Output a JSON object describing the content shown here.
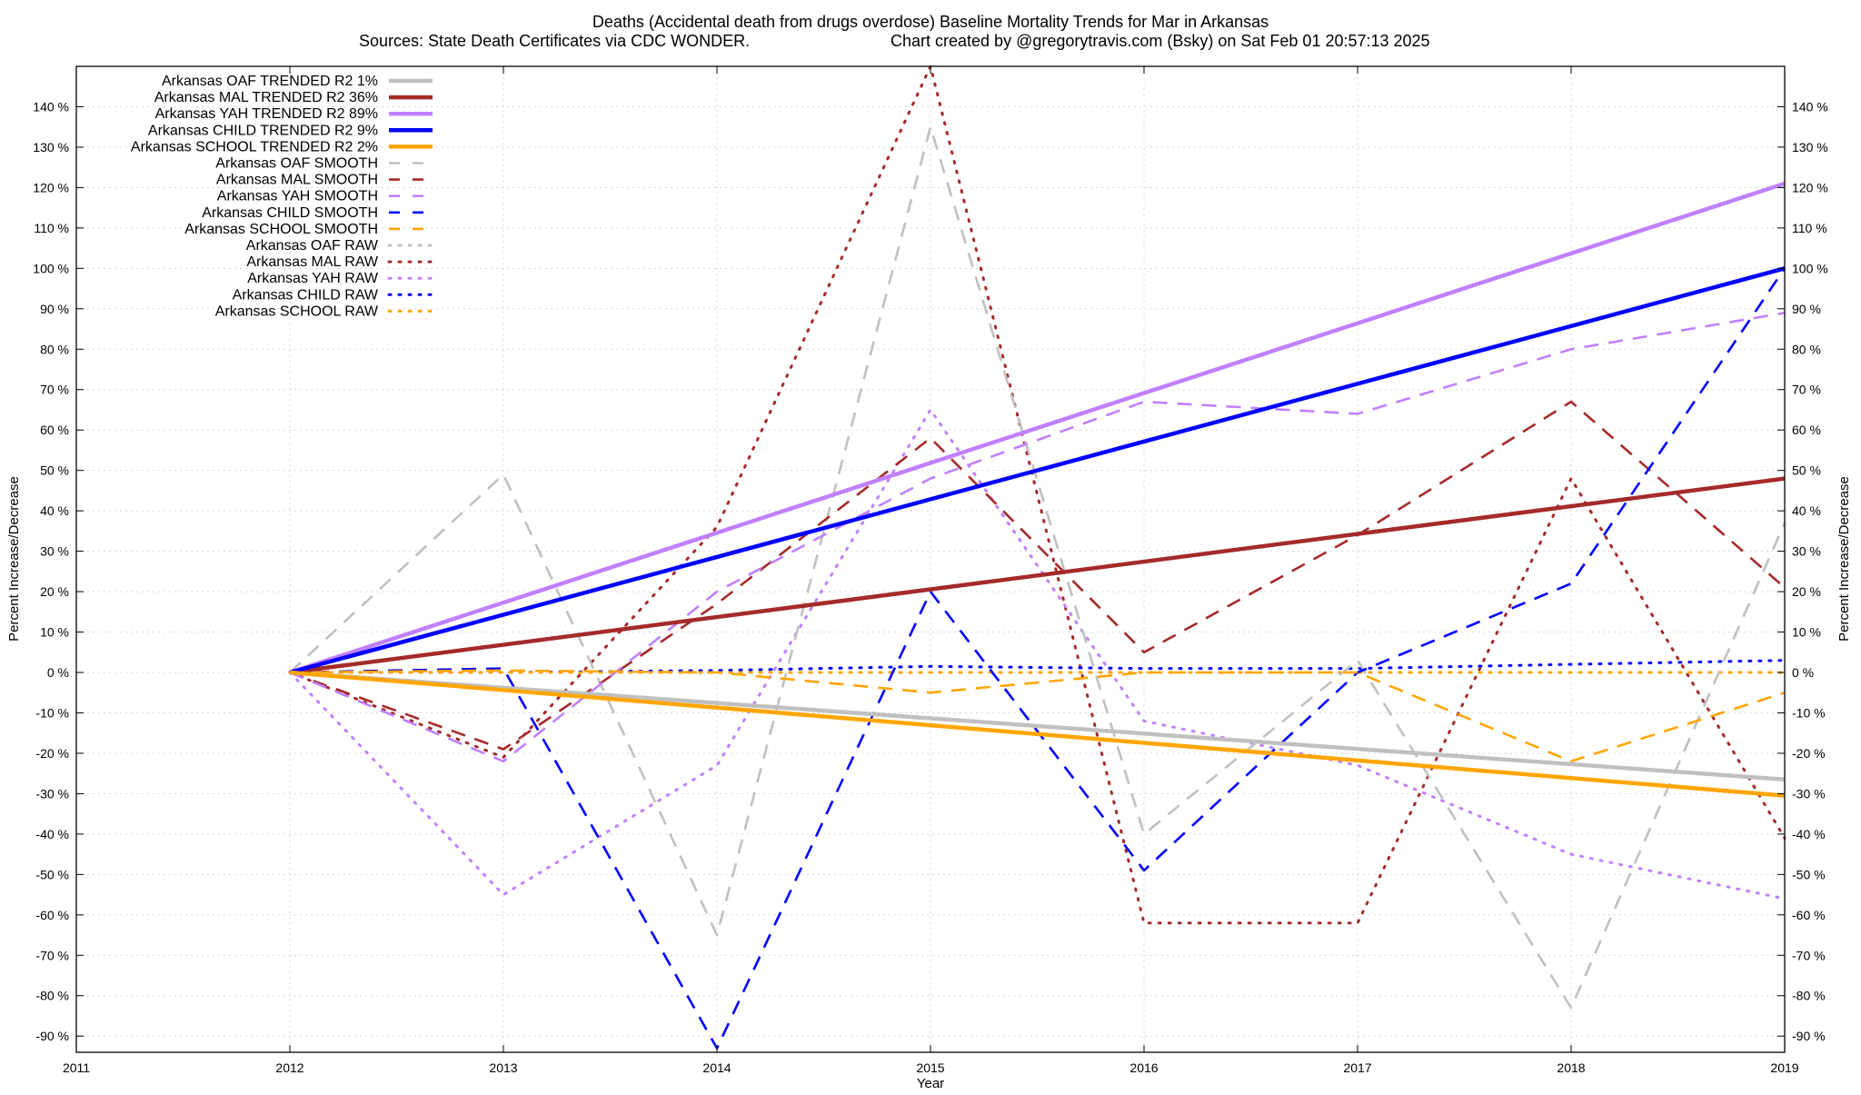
{
  "chart_data": {
    "type": "line",
    "title": "Deaths (Accidental death from drugs overdose)  Baseline Mortality Trends for Mar in Arkansas",
    "subtitle_left": "Sources: State Death Certificates via CDC WONDER.",
    "subtitle_right": "Chart created by @gregorytravis.com (Bsky) on Sat Feb 01 20:57:13 2025",
    "xlabel": "Year",
    "ylabel": "Percent Increase/Decrease",
    "ylabel_right": "Percent Increase/Decrease",
    "xlim": [
      2011,
      2019
    ],
    "ylim": [
      -94,
      150
    ],
    "x_ticks": [
      2011,
      2012,
      2013,
      2014,
      2015,
      2016,
      2017,
      2018,
      2019
    ],
    "x_tick_labels": [
      "2011",
      "2012",
      "2013",
      "2014",
      "2015",
      "2016",
      "2017",
      "2018",
      "2019"
    ],
    "y_ticks": [
      -90,
      -80,
      -70,
      -60,
      -50,
      -40,
      -30,
      -20,
      -10,
      0,
      10,
      20,
      30,
      40,
      50,
      60,
      70,
      80,
      90,
      100,
      110,
      120,
      130,
      140
    ],
    "y_tick_labels": [
      "-90 %",
      "-80 %",
      "-70 %",
      "-60 %",
      "-50 %",
      "-40 %",
      "-30 %",
      "-20 %",
      "-10 %",
      "0 %",
      "10 %",
      "20 %",
      "30 %",
      "40 %",
      "50 %",
      "60 %",
      "70 %",
      "80 %",
      "90 %",
      "100 %",
      "110 %",
      "120 %",
      "130 %",
      "140 %"
    ],
    "grid": true,
    "legend_position": "top-left",
    "series": [
      {
        "name": "Arkansas OAF TRENDED R2   1%",
        "style": "solid",
        "color": "#c0c0c0",
        "x": [
          2012,
          2019
        ],
        "y": [
          0,
          -26.5
        ]
      },
      {
        "name": "Arkansas MAL TRENDED R2  36%",
        "style": "solid",
        "color": "#a52a2a",
        "x": [
          2012,
          2019
        ],
        "y": [
          0,
          48
        ]
      },
      {
        "name": "Arkansas YAH TRENDED R2  89%",
        "style": "solid",
        "color": "#c080ff",
        "x": [
          2012,
          2019
        ],
        "y": [
          0,
          121
        ]
      },
      {
        "name": "Arkansas CHILD TRENDED R2   9%",
        "style": "solid",
        "color": "#0000ff",
        "x": [
          2012,
          2019
        ],
        "y": [
          0,
          100
        ]
      },
      {
        "name": "Arkansas SCHOOL TRENDED R2   2%",
        "style": "solid",
        "color": "#ffa500",
        "x": [
          2012,
          2019
        ],
        "y": [
          0,
          -30.5
        ]
      },
      {
        "name": "Arkansas OAF SMOOTH",
        "style": "dashed",
        "color": "#c0c0c0",
        "x": [
          2012,
          2013,
          2014,
          2015,
          2016,
          2017,
          2018,
          2019
        ],
        "y": [
          0,
          49,
          -65,
          135,
          -40,
          3,
          -83,
          37
        ]
      },
      {
        "name": "Arkansas MAL SMOOTH",
        "style": "dashed",
        "color": "#a52a2a",
        "x": [
          2012,
          2013,
          2014,
          2015,
          2016,
          2017,
          2018,
          2019
        ],
        "y": [
          0,
          -19,
          17,
          58,
          5,
          34,
          67,
          21
        ]
      },
      {
        "name": "Arkansas YAH SMOOTH",
        "style": "dashed",
        "color": "#c080ff",
        "x": [
          2012,
          2013,
          2014,
          2015,
          2016,
          2017,
          2018,
          2019
        ],
        "y": [
          0,
          -22,
          20,
          48,
          67,
          64,
          80,
          89
        ]
      },
      {
        "name": "Arkansas CHILD SMOOTH",
        "style": "dashed",
        "color": "#0000ff",
        "x": [
          2012,
          2013,
          2014,
          2015,
          2016,
          2017,
          2018,
          2019
        ],
        "y": [
          0,
          1,
          -93,
          20,
          -49,
          0,
          22,
          100
        ]
      },
      {
        "name": "Arkansas SCHOOL SMOOTH",
        "style": "dashed",
        "color": "#ffa500",
        "x": [
          2012,
          2013,
          2014,
          2015,
          2016,
          2017,
          2018,
          2019
        ],
        "y": [
          0,
          0.5,
          0,
          -5,
          0,
          0,
          -22,
          -5
        ]
      },
      {
        "name": "Arkansas OAF RAW",
        "style": "dotted",
        "color": "#c0c0c0",
        "x": [
          2012,
          2013,
          2014,
          2015,
          2016,
          2017,
          2018,
          2019
        ],
        "y": [
          0,
          0,
          0,
          0,
          0,
          0,
          0,
          0
        ]
      },
      {
        "name": "Arkansas MAL RAW",
        "style": "dotted",
        "color": "#a52a2a",
        "x": [
          2012,
          2013,
          2014,
          2015,
          2016,
          2017,
          2018,
          2019
        ],
        "y": [
          0,
          -21,
          36,
          150,
          -62,
          -62,
          48,
          -41
        ]
      },
      {
        "name": "Arkansas YAH RAW",
        "style": "dotted",
        "color": "#c080ff",
        "x": [
          2012,
          2013,
          2014,
          2015,
          2016,
          2017,
          2018,
          2019
        ],
        "y": [
          0,
          -55,
          -23,
          65,
          -12,
          -23,
          -45,
          -56
        ]
      },
      {
        "name": "Arkansas CHILD RAW",
        "style": "dotted",
        "color": "#0000ff",
        "x": [
          2012,
          2013,
          2014,
          2015,
          2016,
          2017,
          2018,
          2019
        ],
        "y": [
          0,
          0,
          0.5,
          1.5,
          1,
          1,
          2,
          3
        ]
      },
      {
        "name": "Arkansas SCHOOL RAW",
        "style": "dotted",
        "color": "#ffa500",
        "x": [
          2012,
          2013,
          2014,
          2015,
          2016,
          2017,
          2018,
          2019
        ],
        "y": [
          0,
          0,
          0,
          0,
          0,
          0,
          0,
          0
        ]
      }
    ]
  }
}
